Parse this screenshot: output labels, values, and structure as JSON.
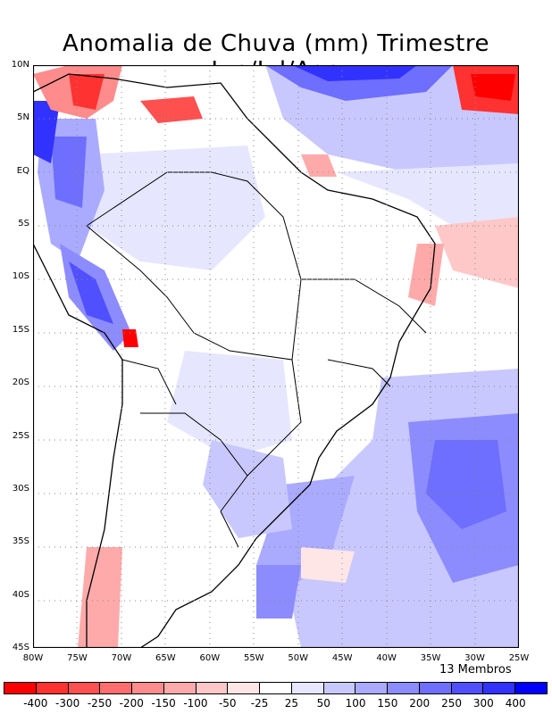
{
  "title": "Anomalia de Chuva (mm) Trimestre Jun/Jul/Ago",
  "members_label": "13 Membros",
  "map": {
    "region": "South America",
    "lat_labels": [
      "10N",
      "5N",
      "EQ",
      "5S",
      "10S",
      "15S",
      "20S",
      "25S",
      "30S",
      "35S",
      "40S",
      "45S"
    ],
    "lon_labels": [
      "80W",
      "75W",
      "70W",
      "65W",
      "60W",
      "55W",
      "50W",
      "45W",
      "40W",
      "35W",
      "30W",
      "25W"
    ]
  },
  "colorbar": {
    "colors": [
      "#ff0000",
      "#ff3232",
      "#ff5050",
      "#ff6e6e",
      "#ff8c8c",
      "#ffaaaa",
      "#ffc8c8",
      "#ffe6e6",
      "#ffffff",
      "#e6e6ff",
      "#c8c8ff",
      "#aaaaff",
      "#8c8cff",
      "#6e6eff",
      "#5050ff",
      "#3232ff",
      "#0000ff"
    ],
    "labels": [
      "-400",
      "-300",
      "-250",
      "-200",
      "-150",
      "-100",
      "-50",
      "-25",
      "25",
      "50",
      "100",
      "150",
      "200",
      "250",
      "300",
      "400"
    ]
  }
}
